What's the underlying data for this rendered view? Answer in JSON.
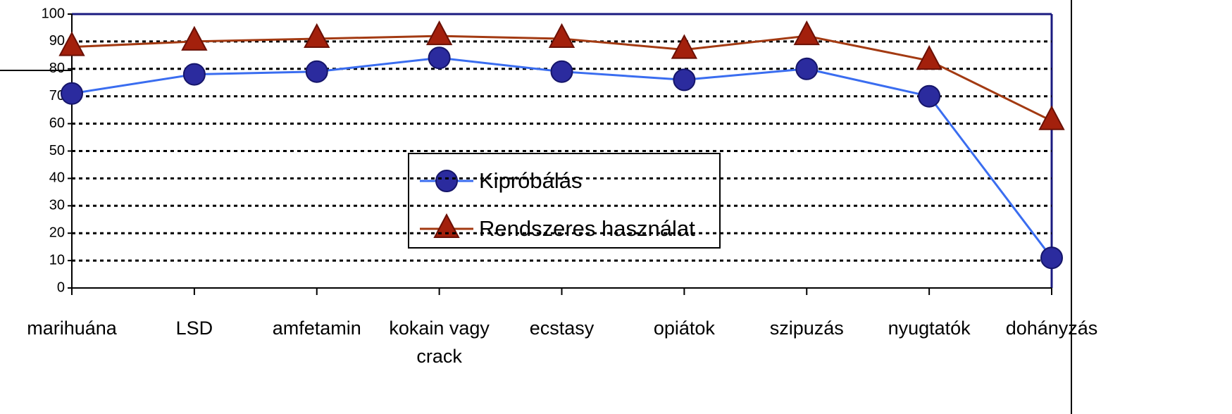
{
  "chart_data": {
    "type": "line",
    "categories": [
      "marihuána",
      "LSD",
      "amfetamin",
      "kokain vagy crack",
      "ecstasy",
      "opiátok",
      "szipuzás",
      "nyugtatók",
      "dohányzás"
    ],
    "series": [
      {
        "name": "Kipróbálás",
        "color": "#3a6df0",
        "marker": "circle",
        "marker_color": "#2b2b9e",
        "values": [
          71,
          78,
          79,
          84,
          79,
          76,
          80,
          70,
          11
        ]
      },
      {
        "name": "Rendszeres használat",
        "color": "#a33a12",
        "marker": "triangle",
        "marker_color": "#a3200c",
        "values": [
          88,
          90,
          91,
          92,
          91,
          87,
          92,
          83,
          61
        ]
      }
    ],
    "ylim": [
      0,
      100
    ],
    "yticks": [
      0,
      10,
      20,
      30,
      40,
      50,
      60,
      70,
      80,
      90,
      100
    ],
    "grid": true
  }
}
